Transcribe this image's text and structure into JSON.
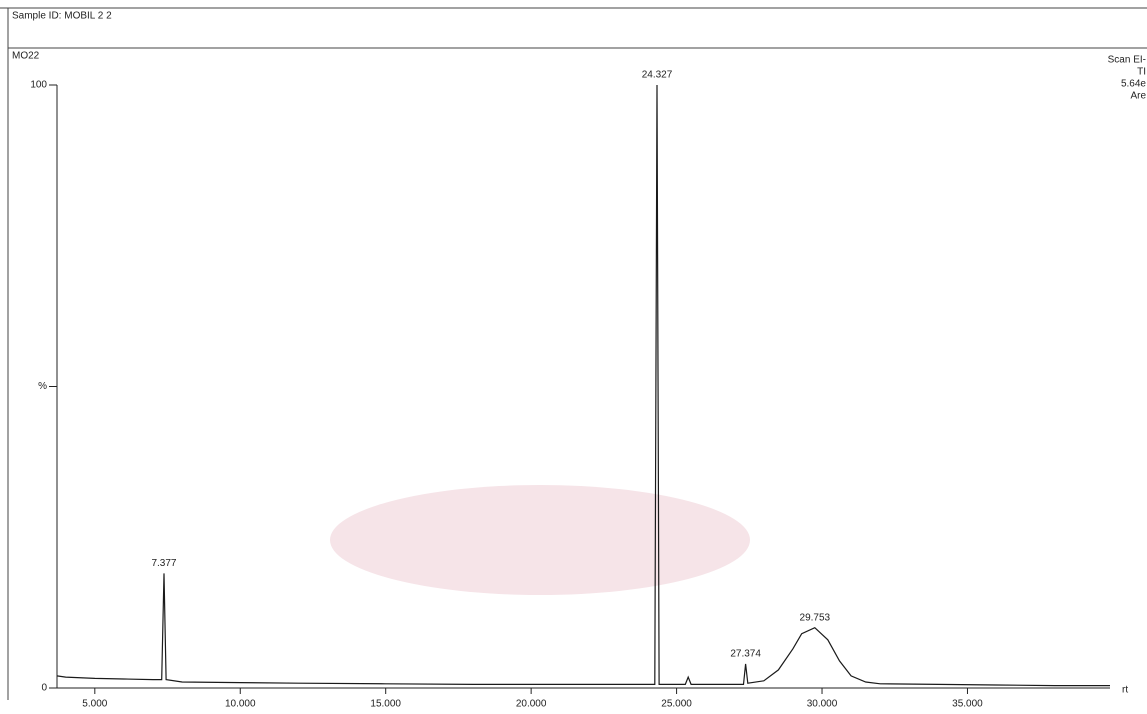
{
  "chart_data": {
    "type": "line",
    "title": "Sample ID: MOBIL 2 2",
    "subtitle": "MO22",
    "info": [
      "Scan EI-",
      "TI",
      "5.64e",
      "Are"
    ],
    "x_axis_label": "rt",
    "series": [
      {
        "color": "#1a1a1a",
        "x": [
          3.7,
          4,
          5,
          6,
          7,
          7.3,
          7.377,
          7.45,
          8,
          10,
          12,
          15,
          18,
          20,
          22,
          24.25,
          24.327,
          24.4,
          25,
          25.3,
          25.4,
          25.5,
          26,
          27.3,
          27.374,
          27.45,
          28,
          28.5,
          29,
          29.3,
          29.753,
          30.2,
          30.6,
          31,
          31.5,
          32,
          34,
          36,
          38,
          39.9
        ],
        "values": [
          2,
          1.8,
          1.6,
          1.5,
          1.4,
          1.4,
          19,
          1.4,
          1,
          0.9,
          0.8,
          0.7,
          0.6,
          0.6,
          0.6,
          0.6,
          100,
          0.6,
          0.6,
          0.6,
          1.8,
          0.6,
          0.6,
          0.6,
          4,
          0.8,
          1.2,
          3,
          6.5,
          9,
          10,
          8,
          4.5,
          2,
          1,
          0.7,
          0.6,
          0.5,
          0.4,
          0.4
        ]
      }
    ],
    "annotations": [
      {
        "x": 7.377,
        "y": 19
      },
      {
        "x": 24.327,
        "y": 100
      },
      {
        "x": 27.374,
        "y": 4
      },
      {
        "x": 29.753,
        "y": 10
      }
    ],
    "xlim": [
      3.7,
      39.9
    ],
    "ylim": [
      0,
      100
    ],
    "xticks": [
      {
        "value": 5,
        "label": "5.000"
      },
      {
        "value": 10,
        "label": "10.000"
      },
      {
        "value": 15,
        "label": "15.000"
      },
      {
        "value": 20,
        "label": "20.000"
      },
      {
        "value": 25,
        "label": "25.000"
      },
      {
        "value": 30,
        "label": "30.000"
      },
      {
        "value": 35,
        "label": "35.000"
      }
    ],
    "yticks": [
      0,
      {
        "value": 50,
        "label": "%"
      },
      100
    ]
  }
}
